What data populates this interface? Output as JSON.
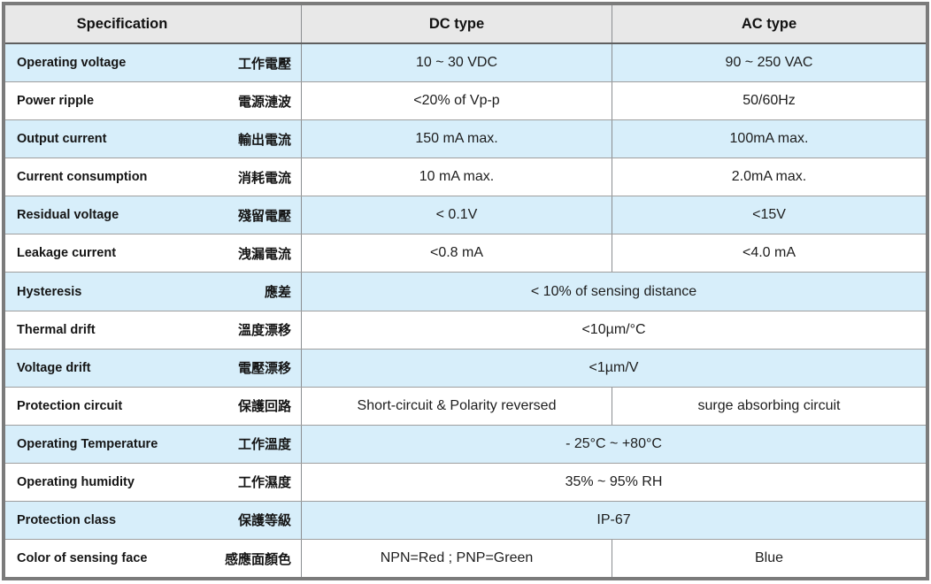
{
  "title": "Sensor specification table",
  "colors": {
    "row_blue": "#d7eefa",
    "header_bg": "#e8e8e8",
    "border_outer": "#7b7b7b",
    "line_row": "#9e9e9e",
    "line_col": "#8a8d90",
    "line_header": "#5f5f5f"
  },
  "header": {
    "spec": "Specification",
    "dc": "DC type",
    "ac": "AC type"
  },
  "rows": [
    {
      "en": "Operating voltage",
      "zh": "工作電壓",
      "span": false,
      "dc": "10 ~ 30 VDC",
      "ac": "90 ~ 250 VAC"
    },
    {
      "en": "Power ripple",
      "zh": "電源漣波",
      "span": false,
      "dc": "<20% of Vp-p",
      "ac": "50/60Hz"
    },
    {
      "en": "Output current",
      "zh": "輸出電流",
      "span": false,
      "dc": "150 mA max.",
      "ac": "100mA max."
    },
    {
      "en": "Current consumption",
      "zh": "消耗電流",
      "span": false,
      "dc": "10 mA max.",
      "ac": "2.0mA max."
    },
    {
      "en": "Residual voltage",
      "zh": "殘留電壓",
      "span": false,
      "dc": "< 0.1V",
      "ac": "<15V"
    },
    {
      "en": "Leakage current",
      "zh": "洩漏電流",
      "span": false,
      "dc": "<0.8 mA",
      "ac": "<4.0 mA"
    },
    {
      "en": "Hysteresis",
      "zh": "應差",
      "span": true,
      "value": "< 10% of sensing distance"
    },
    {
      "en": "Thermal drift",
      "zh": "溫度漂移",
      "span": true,
      "value": "<10µm/°C"
    },
    {
      "en": "Voltage drift",
      "zh": "電壓漂移",
      "span": true,
      "value": "<1µm/V"
    },
    {
      "en": "Protection circuit",
      "zh": "保護回路",
      "span": false,
      "dc": "Short-circuit & Polarity reversed",
      "ac": "surge absorbing circuit"
    },
    {
      "en": "Operating Temperature",
      "zh": "工作溫度",
      "span": true,
      "value": "- 25°C ~ +80°C"
    },
    {
      "en": "Operating humidity",
      "zh": "工作濕度",
      "span": true,
      "value": "35% ~ 95% RH"
    },
    {
      "en": "Protection class",
      "zh": "保護等級",
      "span": true,
      "value": "IP-67"
    },
    {
      "en": "Color of sensing face",
      "zh": "感應面顏色",
      "span": false,
      "dc": "NPN=Red ; PNP=Green",
      "ac": "Blue"
    }
  ]
}
